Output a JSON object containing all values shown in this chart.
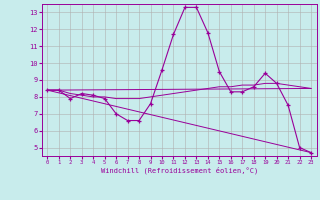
{
  "xlabel": "Windchill (Refroidissement éolien,°C)",
  "background_color": "#c8ecec",
  "grid_color": "#b0b0b0",
  "line_color": "#990099",
  "x_ticks": [
    0,
    1,
    2,
    3,
    4,
    5,
    6,
    7,
    8,
    9,
    10,
    11,
    12,
    13,
    14,
    15,
    16,
    17,
    18,
    19,
    20,
    21,
    22,
    23
  ],
  "y_ticks": [
    5,
    6,
    7,
    8,
    9,
    10,
    11,
    12,
    13
  ],
  "xlim": [
    -0.5,
    23.5
  ],
  "ylim": [
    4.5,
    13.5
  ],
  "line1_x": [
    0,
    1,
    2,
    3,
    4,
    5,
    6,
    7,
    8,
    9,
    10,
    11,
    12,
    13,
    14,
    15,
    16,
    17,
    18,
    19,
    20,
    21,
    22,
    23
  ],
  "line1_y": [
    8.4,
    8.4,
    7.9,
    8.2,
    8.1,
    7.9,
    7.0,
    6.6,
    6.6,
    7.6,
    9.6,
    11.7,
    13.3,
    13.3,
    11.8,
    9.5,
    8.3,
    8.3,
    8.6,
    9.4,
    8.8,
    7.5,
    5.0,
    4.7
  ],
  "line2_x": [
    0,
    23
  ],
  "line2_y": [
    8.4,
    8.5
  ],
  "line3_x": [
    0,
    23
  ],
  "line3_y": [
    8.4,
    4.7
  ],
  "line4_x": [
    0,
    1,
    2,
    3,
    4,
    5,
    6,
    7,
    8,
    9,
    10,
    11,
    12,
    13,
    14,
    15,
    16,
    17,
    18,
    19,
    20,
    21,
    22,
    23
  ],
  "line4_y": [
    8.4,
    8.4,
    8.2,
    8.1,
    8.0,
    8.0,
    7.9,
    7.9,
    7.9,
    8.0,
    8.1,
    8.2,
    8.3,
    8.4,
    8.5,
    8.6,
    8.6,
    8.7,
    8.7,
    8.8,
    8.8,
    8.7,
    8.6,
    8.5
  ]
}
